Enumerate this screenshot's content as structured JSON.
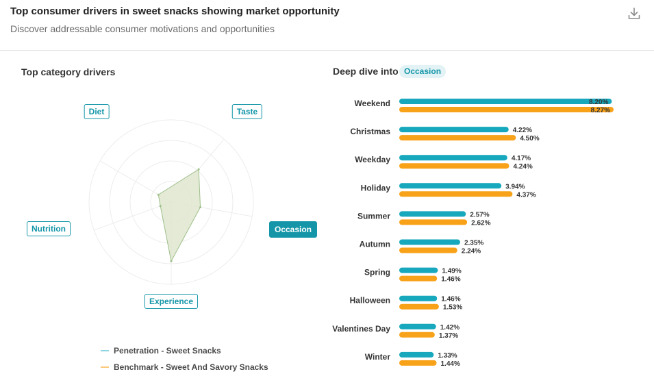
{
  "header": {
    "title": "Top consumer drivers in sweet snacks showing market opportunity",
    "subtitle": "Discover addressable consumer motivations and opportunities",
    "download_icon": "download-icon"
  },
  "left_panel": {
    "title": "Top category drivers",
    "axes": [
      "Diet",
      "Taste",
      "Occasion",
      "Experience",
      "Nutrition"
    ],
    "active_axis": "Occasion"
  },
  "right_panel": {
    "title": "Deep dive into",
    "badge": "Occasion"
  },
  "legend": {
    "penetration": "Penetration - Sweet Snacks",
    "benchmark": "Benchmark - Sweet And Savory Snacks"
  },
  "colors": {
    "penetration": "#17a8bd",
    "benchmark": "#f8a21a",
    "accent": "#1496a8",
    "radar_fill": "#dfe6cf",
    "radar_stroke": "#9dbf8a"
  },
  "chart_data": [
    {
      "type": "radar",
      "axes": [
        "Taste",
        "Occasion",
        "Experience",
        "Nutrition",
        "Diet"
      ],
      "series": [
        {
          "name": "Penetration - Sweet Snacks",
          "values": [
            0.52,
            0.36,
            0.72,
            0.14,
            0.18
          ]
        },
        {
          "name": "Benchmark - Sweet And Savory Snacks",
          "values": [
            0.52,
            0.36,
            0.72,
            0.14,
            0.18
          ]
        }
      ]
    },
    {
      "type": "bar",
      "orientation": "horizontal",
      "categories": [
        "Weekend",
        "Christmas",
        "Weekday",
        "Holiday",
        "Summer",
        "Autumn",
        "Spring",
        "Halloween",
        "Valentines Day",
        "Winter"
      ],
      "series": [
        {
          "name": "Penetration - Sweet Snacks",
          "values": [
            8.2,
            4.22,
            4.17,
            3.94,
            2.57,
            2.35,
            1.49,
            1.46,
            1.42,
            1.33
          ],
          "labels": [
            "8.20%",
            "4.22%",
            "4.17%",
            "3.94%",
            "2.57%",
            "2.35%",
            "1.49%",
            "1.46%",
            "1.42%",
            "1.33%"
          ]
        },
        {
          "name": "Benchmark - Sweet And Savory Snacks",
          "values": [
            8.27,
            4.5,
            4.24,
            4.37,
            2.62,
            2.24,
            1.46,
            1.53,
            1.37,
            1.44
          ],
          "labels": [
            "8.27%",
            "4.50%",
            "4.24%",
            "4.37%",
            "2.62%",
            "2.24%",
            "1.46%",
            "1.53%",
            "1.37%",
            "1.44%"
          ]
        }
      ],
      "xlim": [
        0,
        8.27
      ]
    }
  ]
}
